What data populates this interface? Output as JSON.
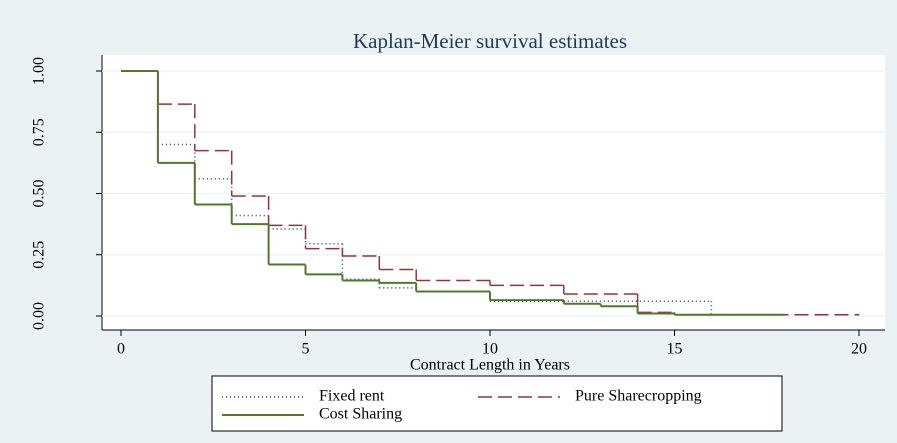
{
  "chart_data": {
    "type": "step",
    "title": "Kaplan-Meier survival estimates",
    "x_label": "Contract Length in Years",
    "xlim": [
      0,
      20
    ],
    "xticks": [
      0,
      5,
      10,
      15,
      20
    ],
    "ylim": [
      0,
      1
    ],
    "yticks": [
      {
        "value": 0,
        "label": "0.00"
      },
      {
        "value": 0.25,
        "label": "0.25"
      },
      {
        "value": 0.5,
        "label": "0.50"
      },
      {
        "value": 0.75,
        "label": "0.75"
      },
      {
        "value": 1,
        "label": "1.00"
      }
    ],
    "grid": true,
    "legend_position": "bottom",
    "series": [
      {
        "name": "Fixed rent",
        "color": "#1a476f",
        "dash": "1,3",
        "x": [
          0,
          1,
          2,
          3,
          4,
          5,
          6,
          7,
          8,
          10,
          12,
          16,
          18
        ],
        "values": [
          1,
          0.7,
          0.56,
          0.41,
          0.355,
          0.295,
          0.15,
          0.115,
          0.1,
          0.06,
          0.06,
          0.005,
          0.005
        ]
      },
      {
        "name": "Pure Sharecropping",
        "color": "#90353b",
        "dash": "14,6",
        "x": [
          0,
          1,
          2,
          3,
          4,
          5,
          6,
          7,
          8,
          10,
          12,
          14,
          15,
          20
        ],
        "values": [
          1,
          0.865,
          0.675,
          0.49,
          0.37,
          0.275,
          0.245,
          0.19,
          0.145,
          0.125,
          0.09,
          0.015,
          0.005,
          0.005
        ]
      },
      {
        "name": "Cost Sharing",
        "color": "#55752f",
        "dash": "",
        "x": [
          0,
          1,
          2,
          3,
          4,
          5,
          6,
          7,
          8,
          10,
          12,
          13,
          14,
          15,
          18
        ],
        "values": [
          1,
          0.625,
          0.455,
          0.375,
          0.21,
          0.17,
          0.145,
          0.135,
          0.1,
          0.065,
          0.05,
          0.04,
          0.01,
          0.005,
          0.005
        ]
      }
    ]
  }
}
